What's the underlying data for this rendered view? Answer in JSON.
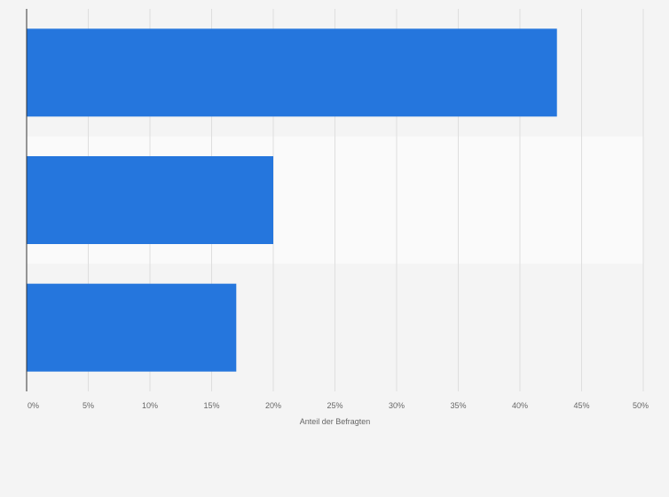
{
  "chart_data": {
    "type": "bar",
    "orientation": "horizontal",
    "categories": [
      "",
      "",
      ""
    ],
    "values": [
      43,
      20,
      17
    ],
    "xlabel": "Anteil der Befragten",
    "ylabel": "",
    "xlim": [
      0,
      50
    ],
    "x_ticks": [
      0,
      5,
      10,
      15,
      20,
      25,
      30,
      35,
      40,
      45,
      50
    ],
    "x_tick_labels": [
      "0%",
      "5%",
      "10%",
      "15%",
      "20%",
      "25%",
      "30%",
      "35%",
      "40%",
      "45%",
      "50%"
    ],
    "grid": true,
    "legend": "none",
    "colors": {
      "bar": "#2576dd",
      "background": "#f4f4f4",
      "band_alt": "#fafafa",
      "grid": "#dedede",
      "axis": "#333333",
      "text": "#666666"
    }
  }
}
